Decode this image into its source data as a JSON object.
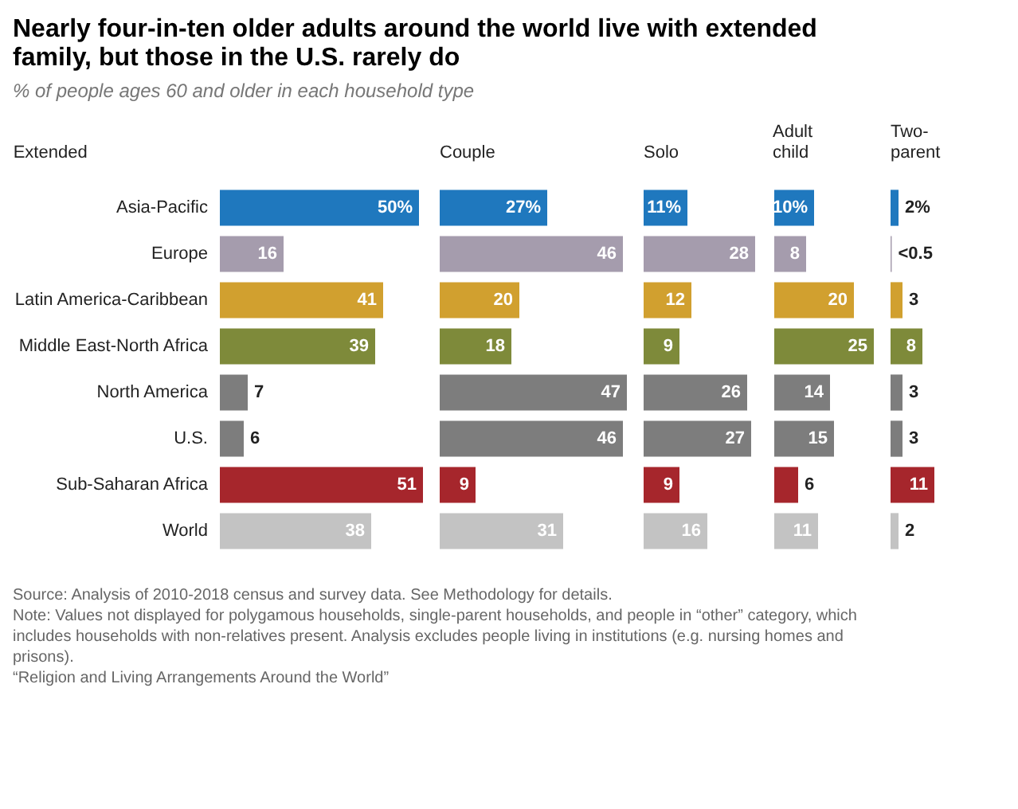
{
  "chart_data": [
    {
      "type": "bar",
      "orientation": "horizontal",
      "title": "Nearly four-in-ten older adults around the world live with extended family, but those in the U.S. rarely do",
      "subtitle": "% of people ages 60 and older in each household type",
      "annotations": [
        "Source: Analysis of 2010-2018 census and survey data. See Methodology for details.",
        "Note: Values not displayed for polygamous households, single-parent households, and people in “other” category, which includes households with non-relatives present. Analysis excludes people living in institutions (e.g. nursing homes and prisons).",
        "“Religion and Living Arrangements Around the World”"
      ],
      "xlabel": "Extended",
      "tick_labels": "y",
      "categories": [
        "Asia-Pacific",
        "Europe",
        "Latin America-Caribbean",
        "Middle East-North Africa",
        "North America",
        "U.S.",
        "Sub-Saharan Africa",
        "World"
      ],
      "colors": [
        "#1f78be",
        "#a59cad",
        "#d1a02f",
        "#7e8a3a",
        "#7d7d7d",
        "#7d7d7d",
        "#a6262c",
        "#c3c3c3"
      ],
      "values": [
        50,
        16,
        41,
        39,
        7,
        6,
        51,
        38
      ],
      "value_labels": [
        "50%",
        "16",
        "41",
        "39",
        "7",
        "6",
        "51",
        "38"
      ]
    },
    {
      "type": "bar",
      "orientation": "horizontal",
      "xlabel": "Couple",
      "tick_labels": false,
      "colors": [
        "#1f78be",
        "#a59cad",
        "#d1a02f",
        "#7e8a3a",
        "#7d7d7d",
        "#7d7d7d",
        "#a6262c",
        "#c3c3c3"
      ],
      "values": [
        27,
        46,
        20,
        18,
        47,
        46,
        9,
        31
      ],
      "value_labels": [
        "27%",
        "46",
        "20",
        "18",
        "47",
        "46",
        "9",
        "31"
      ]
    },
    {
      "type": "bar",
      "orientation": "horizontal",
      "xlabel": "Solo",
      "tick_labels": false,
      "colors": [
        "#1f78be",
        "#a59cad",
        "#d1a02f",
        "#7e8a3a",
        "#7d7d7d",
        "#7d7d7d",
        "#a6262c",
        "#c3c3c3"
      ],
      "values": [
        11,
        28,
        12,
        9,
        26,
        27,
        9,
        16
      ],
      "value_labels": [
        "11%",
        "28",
        "12",
        "9",
        "26",
        "27",
        "9",
        "16"
      ]
    },
    {
      "type": "bar",
      "orientation": "horizontal",
      "xlabel": "Adult child",
      "tick_labels": false,
      "colors": [
        "#1f78be",
        "#a59cad",
        "#d1a02f",
        "#7e8a3a",
        "#7d7d7d",
        "#7d7d7d",
        "#a6262c",
        "#c3c3c3"
      ],
      "values": [
        10,
        8,
        20,
        25,
        14,
        15,
        6,
        11
      ],
      "value_labels": [
        "10%",
        "8",
        "20",
        "25",
        "14",
        "15",
        "6",
        "11"
      ]
    },
    {
      "type": "bar",
      "orientation": "horizontal",
      "xlabel": "Two-parent",
      "tick_labels": false,
      "colors": [
        "#1f78be",
        "#a59cad",
        "#d1a02f",
        "#7e8a3a",
        "#7d7d7d",
        "#7d7d7d",
        "#a6262c",
        "#c3c3c3"
      ],
      "values": [
        2,
        0.3,
        3,
        8,
        3,
        3,
        11,
        2
      ],
      "value_labels": [
        "2%",
        "<0.5",
        "3",
        "8",
        "3",
        "3",
        "11",
        "2"
      ]
    }
  ]
}
